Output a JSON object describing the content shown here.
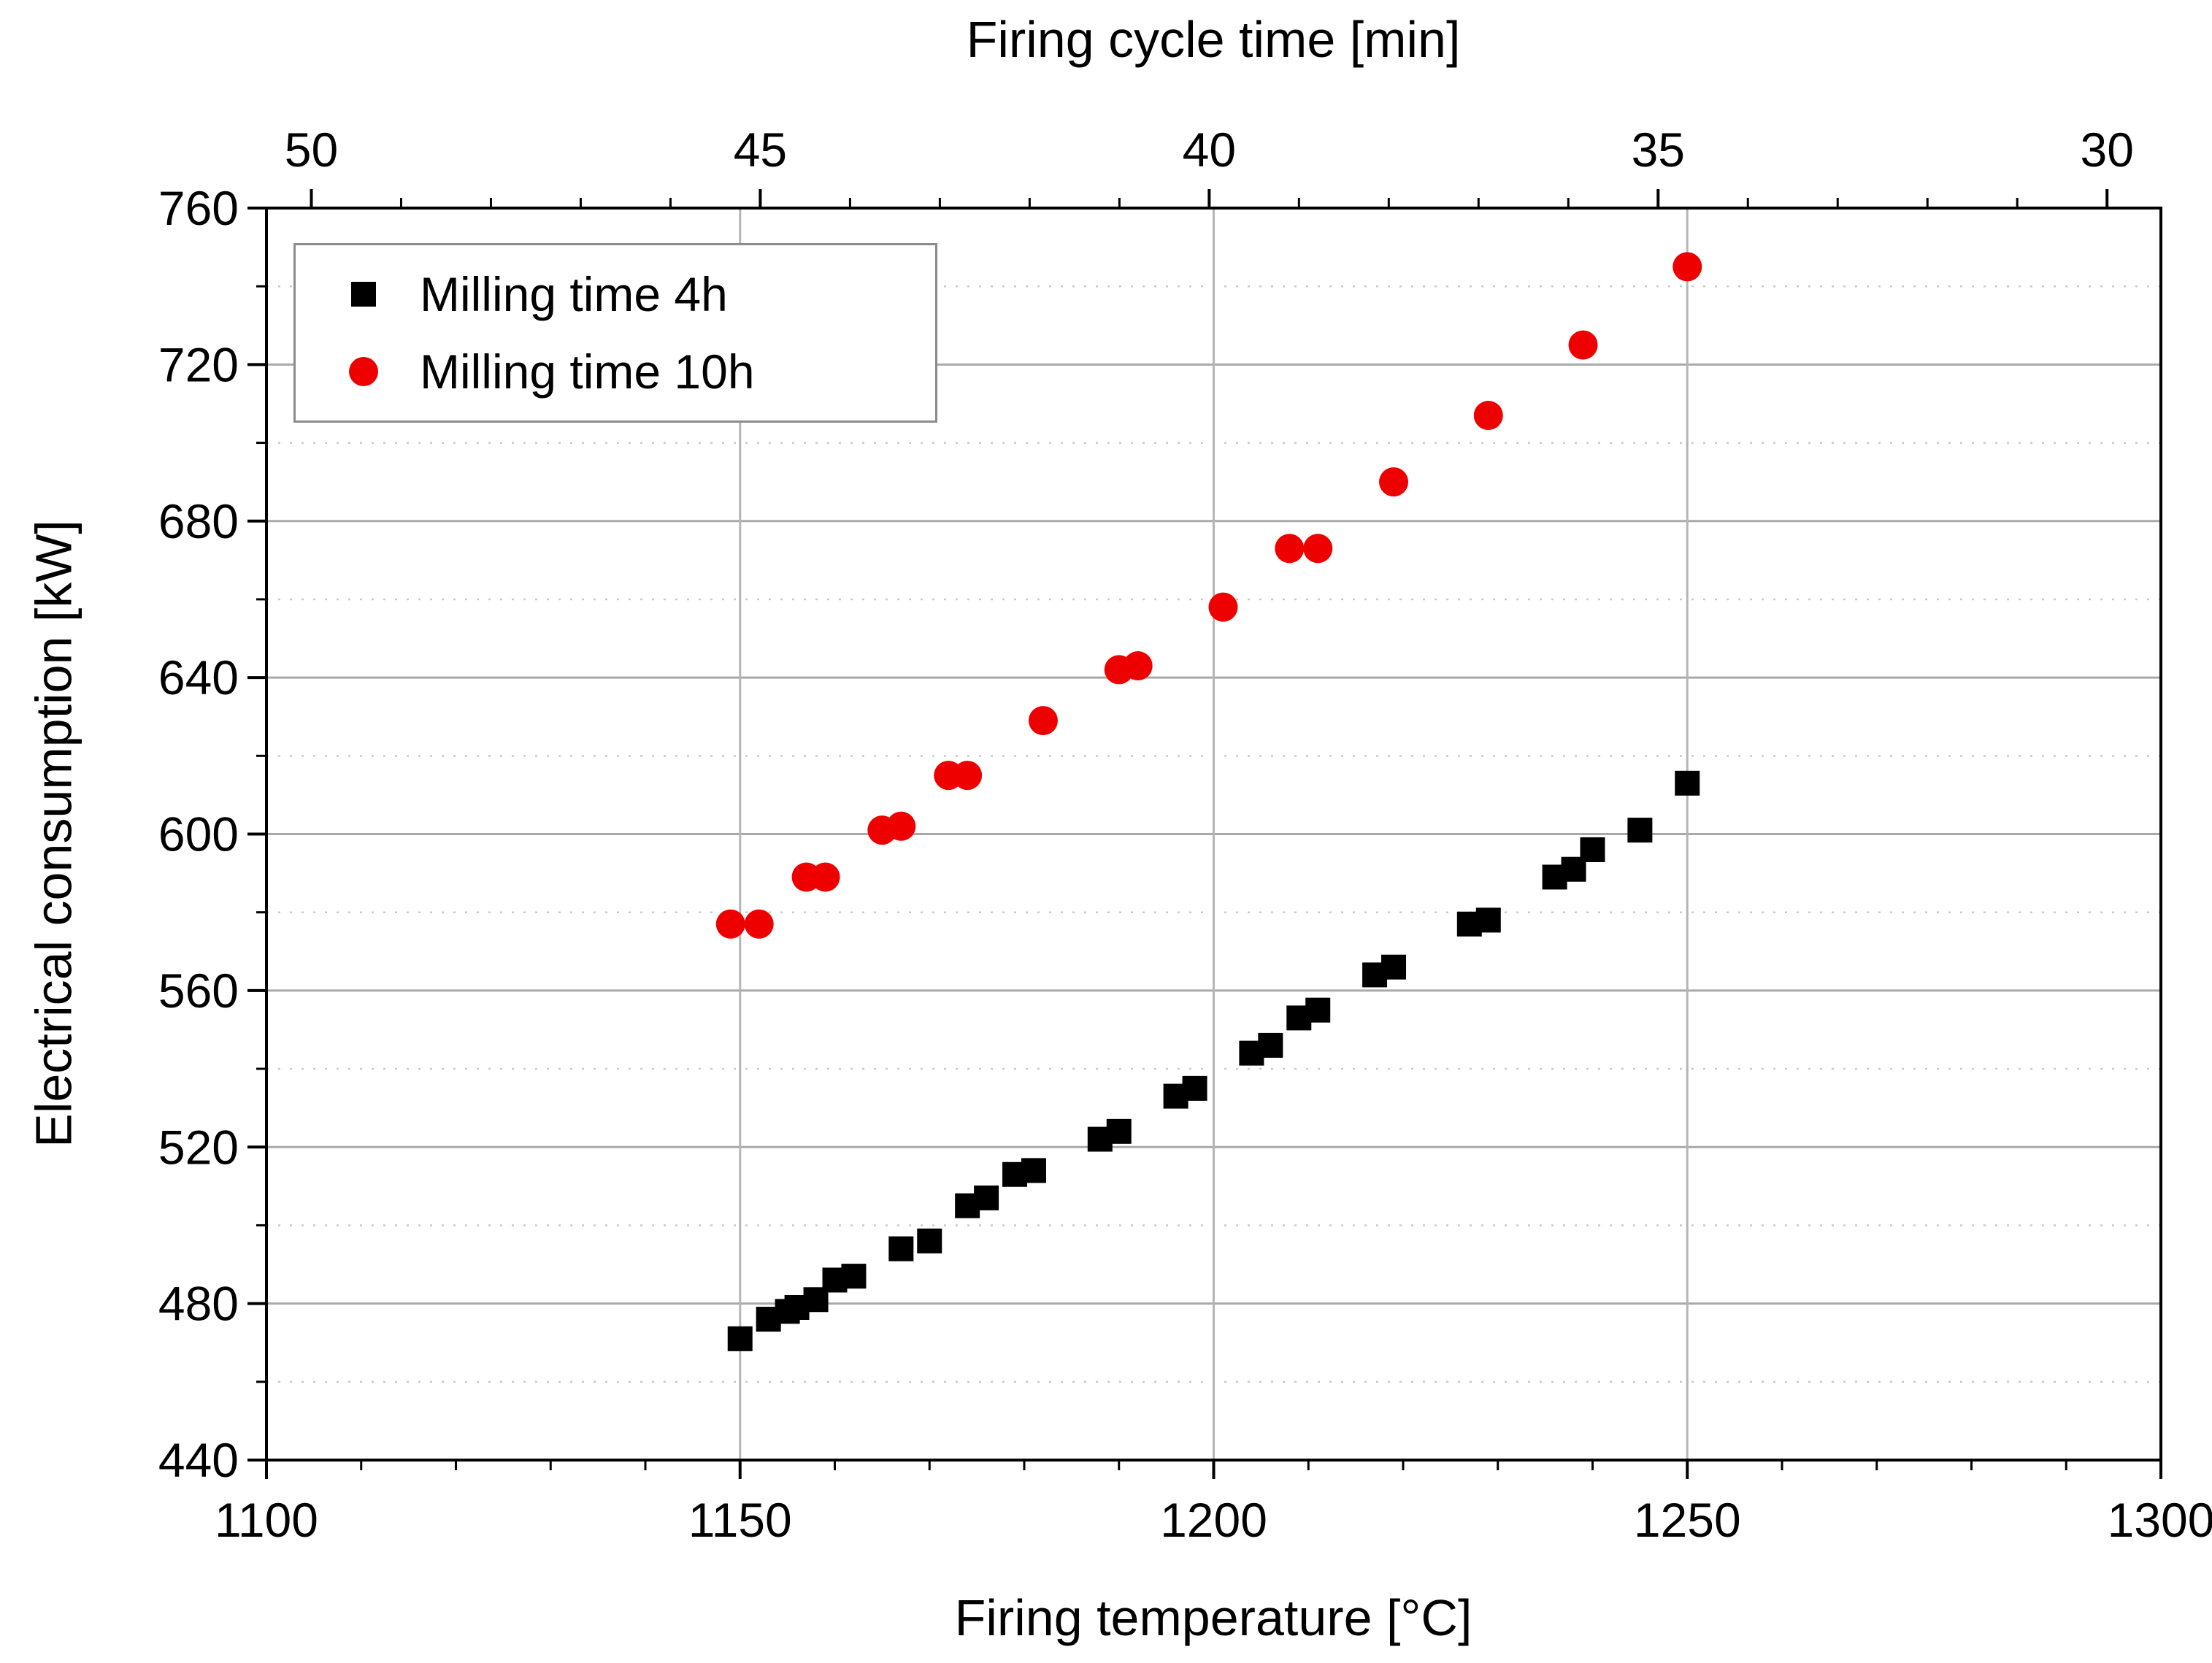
{
  "chart_data": {
    "type": "scatter",
    "title": "",
    "top_axis": {
      "label": "Firing cycle time [min]",
      "ticks": [
        50,
        45,
        40,
        35,
        30
      ],
      "range": [
        50.5,
        29.4
      ],
      "major_step": 5,
      "minor_step": 1
    },
    "bottom_axis": {
      "label": "Firing temperature [°C]",
      "ticks": [
        1100,
        1150,
        1200,
        1250,
        1300
      ],
      "range": [
        1100,
        1300
      ],
      "major_step": 50,
      "minor_step": 10
    },
    "left_axis": {
      "label": "Electrical consumption [kW]",
      "ticks": [
        440,
        480,
        520,
        560,
        600,
        640,
        680,
        720,
        760
      ],
      "range": [
        440,
        760
      ],
      "major_step": 40,
      "minor_step": 20
    },
    "grid": {
      "horizontal_major": "solid",
      "horizontal_minor": "dotted",
      "vertical_major": "solid"
    },
    "legend": {
      "position": "top-left"
    },
    "series": [
      {
        "name": "Milling time 4h",
        "marker": "square",
        "color": "#000000",
        "points": [
          [
            1150,
            471
          ],
          [
            1153,
            476
          ],
          [
            1155,
            478
          ],
          [
            1156,
            479
          ],
          [
            1158,
            481
          ],
          [
            1160,
            486
          ],
          [
            1162,
            487
          ],
          [
            1167,
            494
          ],
          [
            1170,
            496
          ],
          [
            1174,
            505
          ],
          [
            1176,
            507
          ],
          [
            1179,
            513
          ],
          [
            1181,
            514
          ],
          [
            1188,
            522
          ],
          [
            1190,
            524
          ],
          [
            1196,
            533
          ],
          [
            1198,
            535
          ],
          [
            1204,
            544
          ],
          [
            1206,
            546
          ],
          [
            1209,
            553
          ],
          [
            1211,
            555
          ],
          [
            1217,
            564
          ],
          [
            1219,
            566
          ],
          [
            1227,
            577
          ],
          [
            1229,
            578
          ],
          [
            1236,
            589
          ],
          [
            1238,
            591
          ],
          [
            1240,
            596
          ],
          [
            1245,
            601
          ],
          [
            1250,
            613
          ]
        ]
      },
      {
        "name": "Milling time 10h",
        "marker": "circle",
        "color": "#ee0000",
        "points": [
          [
            1149,
            577
          ],
          [
            1152,
            577
          ],
          [
            1157,
            589
          ],
          [
            1159,
            589
          ],
          [
            1165,
            601
          ],
          [
            1167,
            602
          ],
          [
            1172,
            615
          ],
          [
            1174,
            615
          ],
          [
            1182,
            629
          ],
          [
            1190,
            642
          ],
          [
            1192,
            643
          ],
          [
            1201,
            658
          ],
          [
            1208,
            673
          ],
          [
            1211,
            673
          ],
          [
            1219,
            690
          ],
          [
            1229,
            707
          ],
          [
            1239,
            725
          ],
          [
            1250,
            745
          ]
        ]
      }
    ]
  }
}
